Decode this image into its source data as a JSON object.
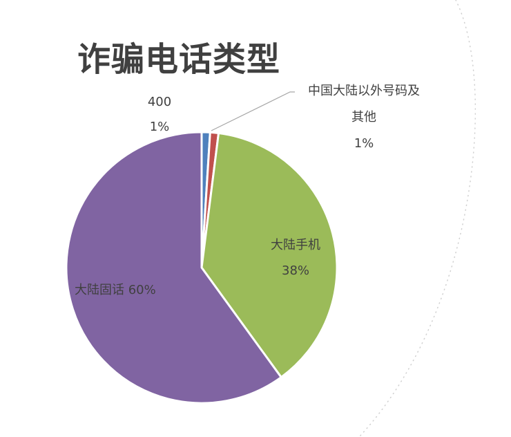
{
  "title": "诈骗电话类型",
  "chart_data": {
    "type": "pie",
    "title": "诈骗电话类型",
    "start_angle_deg": 0,
    "direction": "clockwise",
    "slices": [
      {
        "label_lines": [
          "400"
        ],
        "percent_text": "1%",
        "value": 1,
        "color": "#4F81BD"
      },
      {
        "label_lines": [
          "中国大陆以外号码及",
          "其他"
        ],
        "percent_text": "1%",
        "value": 1,
        "color": "#C0504D"
      },
      {
        "label_lines": [
          "大陆手机"
        ],
        "percent_text": "38%",
        "value": 38,
        "color": "#9BBB59"
      },
      {
        "label_lines": [
          "大陆固话 60%"
        ],
        "percent_text": "",
        "value": 60,
        "color": "#8064A2"
      }
    ],
    "separator_color": "#ffffff"
  },
  "decor": {
    "arc_color": "#d0d0d0",
    "leader_color": "#a6a6a6"
  }
}
